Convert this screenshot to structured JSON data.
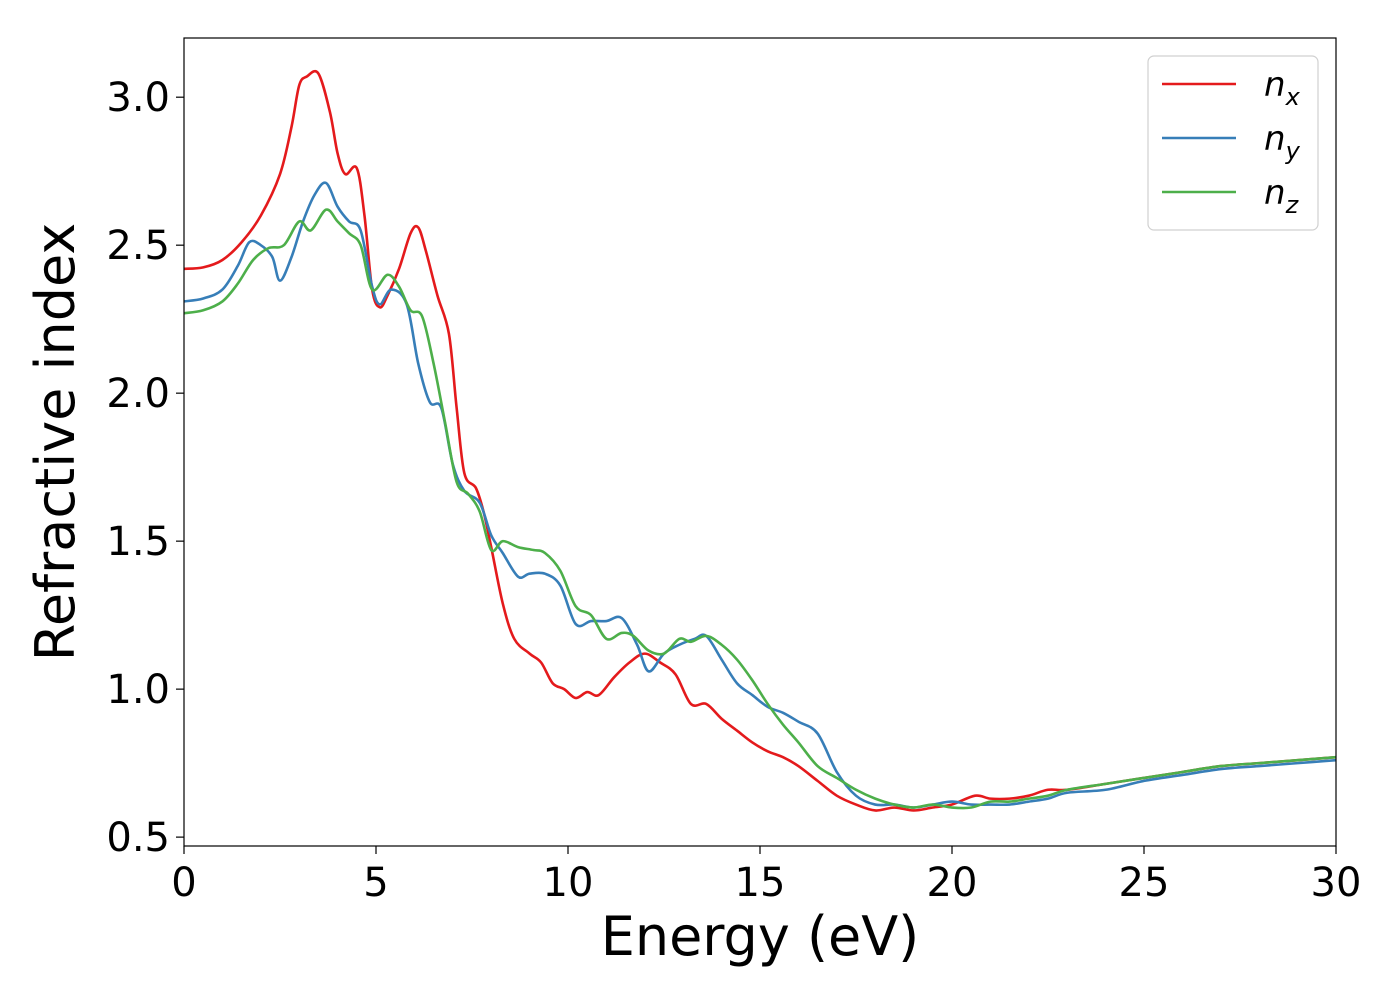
{
  "chart_data": {
    "type": "line",
    "xlabel": "Energy (eV)",
    "ylabel": "Refractive index",
    "xlim": [
      0,
      30
    ],
    "ylim": [
      0.47,
      3.2
    ],
    "xticks": [
      0,
      5,
      10,
      15,
      20,
      25,
      30
    ],
    "xtick_labels": [
      "0",
      "5",
      "10",
      "15",
      "20",
      "25",
      "30"
    ],
    "yticks": [
      0.5,
      1.0,
      1.5,
      2.0,
      2.5,
      3.0
    ],
    "ytick_labels": [
      "0.5",
      "1.0",
      "1.5",
      "2.0",
      "2.5",
      "3.0"
    ],
    "grid": false,
    "legend_position": "top-right",
    "series": [
      {
        "name": "n",
        "subscript": "x",
        "color": "#e41a1c",
        "points": [
          [
            0,
            2.42
          ],
          [
            0.5,
            2.425
          ],
          [
            1,
            2.45
          ],
          [
            1.5,
            2.51
          ],
          [
            2,
            2.6
          ],
          [
            2.5,
            2.74
          ],
          [
            2.8,
            2.9
          ],
          [
            3.0,
            3.04
          ],
          [
            3.2,
            3.07
          ],
          [
            3.5,
            3.08
          ],
          [
            3.8,
            2.95
          ],
          [
            4.0,
            2.81
          ],
          [
            4.2,
            2.74
          ],
          [
            4.5,
            2.76
          ],
          [
            4.7,
            2.6
          ],
          [
            4.9,
            2.35
          ],
          [
            5.1,
            2.29
          ],
          [
            5.3,
            2.33
          ],
          [
            5.6,
            2.42
          ],
          [
            5.9,
            2.54
          ],
          [
            6.1,
            2.56
          ],
          [
            6.3,
            2.48
          ],
          [
            6.6,
            2.33
          ],
          [
            6.9,
            2.2
          ],
          [
            7.1,
            1.95
          ],
          [
            7.3,
            1.73
          ],
          [
            7.6,
            1.68
          ],
          [
            7.8,
            1.6
          ],
          [
            8.0,
            1.48
          ],
          [
            8.3,
            1.29
          ],
          [
            8.6,
            1.17
          ],
          [
            9.0,
            1.12
          ],
          [
            9.3,
            1.09
          ],
          [
            9.6,
            1.02
          ],
          [
            9.9,
            1.0
          ],
          [
            10.2,
            0.97
          ],
          [
            10.5,
            0.99
          ],
          [
            10.8,
            0.98
          ],
          [
            11.2,
            1.04
          ],
          [
            11.6,
            1.09
          ],
          [
            12.0,
            1.12
          ],
          [
            12.4,
            1.09
          ],
          [
            12.8,
            1.05
          ],
          [
            13.2,
            0.95
          ],
          [
            13.6,
            0.95
          ],
          [
            14.0,
            0.9
          ],
          [
            14.4,
            0.86
          ],
          [
            14.8,
            0.82
          ],
          [
            15.2,
            0.79
          ],
          [
            15.6,
            0.77
          ],
          [
            16.0,
            0.74
          ],
          [
            16.5,
            0.69
          ],
          [
            17.0,
            0.64
          ],
          [
            17.5,
            0.61
          ],
          [
            18.0,
            0.59
          ],
          [
            18.5,
            0.6
          ],
          [
            19.0,
            0.59
          ],
          [
            19.5,
            0.6
          ],
          [
            20.0,
            0.61
          ],
          [
            20.6,
            0.64
          ],
          [
            21.0,
            0.63
          ],
          [
            21.5,
            0.63
          ],
          [
            22.0,
            0.64
          ],
          [
            22.5,
            0.66
          ],
          [
            23.0,
            0.66
          ],
          [
            24.0,
            0.68
          ],
          [
            25.0,
            0.7
          ],
          [
            26.0,
            0.72
          ],
          [
            27.0,
            0.74
          ],
          [
            28.0,
            0.75
          ],
          [
            29.0,
            0.76
          ],
          [
            30.0,
            0.77
          ]
        ]
      },
      {
        "name": "n",
        "subscript": "y",
        "color": "#377eb8",
        "points": [
          [
            0,
            2.31
          ],
          [
            0.5,
            2.32
          ],
          [
            1.0,
            2.35
          ],
          [
            1.4,
            2.43
          ],
          [
            1.7,
            2.51
          ],
          [
            2.0,
            2.5
          ],
          [
            2.3,
            2.46
          ],
          [
            2.5,
            2.38
          ],
          [
            2.8,
            2.46
          ],
          [
            3.1,
            2.58
          ],
          [
            3.4,
            2.67
          ],
          [
            3.7,
            2.71
          ],
          [
            4.0,
            2.63
          ],
          [
            4.3,
            2.58
          ],
          [
            4.6,
            2.55
          ],
          [
            4.9,
            2.36
          ],
          [
            5.1,
            2.3
          ],
          [
            5.4,
            2.35
          ],
          [
            5.8,
            2.3
          ],
          [
            6.1,
            2.1
          ],
          [
            6.4,
            1.97
          ],
          [
            6.7,
            1.95
          ],
          [
            7.0,
            1.76
          ],
          [
            7.3,
            1.67
          ],
          [
            7.7,
            1.63
          ],
          [
            8.0,
            1.52
          ],
          [
            8.3,
            1.46
          ],
          [
            8.7,
            1.38
          ],
          [
            9.0,
            1.39
          ],
          [
            9.4,
            1.39
          ],
          [
            9.8,
            1.35
          ],
          [
            10.2,
            1.22
          ],
          [
            10.6,
            1.23
          ],
          [
            11.0,
            1.23
          ],
          [
            11.4,
            1.24
          ],
          [
            11.8,
            1.15
          ],
          [
            12.1,
            1.06
          ],
          [
            12.5,
            1.12
          ],
          [
            12.9,
            1.15
          ],
          [
            13.3,
            1.17
          ],
          [
            13.6,
            1.18
          ],
          [
            14.0,
            1.1
          ],
          [
            14.4,
            1.02
          ],
          [
            14.8,
            0.98
          ],
          [
            15.2,
            0.94
          ],
          [
            15.6,
            0.92
          ],
          [
            16.0,
            0.89
          ],
          [
            16.5,
            0.85
          ],
          [
            17.0,
            0.72
          ],
          [
            17.5,
            0.64
          ],
          [
            18.0,
            0.61
          ],
          [
            18.5,
            0.61
          ],
          [
            19.0,
            0.6
          ],
          [
            19.5,
            0.61
          ],
          [
            20.0,
            0.62
          ],
          [
            20.5,
            0.61
          ],
          [
            21.0,
            0.61
          ],
          [
            21.5,
            0.61
          ],
          [
            22.0,
            0.62
          ],
          [
            22.5,
            0.63
          ],
          [
            23.0,
            0.65
          ],
          [
            24.0,
            0.66
          ],
          [
            25.0,
            0.69
          ],
          [
            26.0,
            0.71
          ],
          [
            27.0,
            0.73
          ],
          [
            28.0,
            0.74
          ],
          [
            29.0,
            0.75
          ],
          [
            30.0,
            0.76
          ]
        ]
      },
      {
        "name": "n",
        "subscript": "z",
        "color": "#4daf4a",
        "points": [
          [
            0,
            2.27
          ],
          [
            0.5,
            2.28
          ],
          [
            1.0,
            2.31
          ],
          [
            1.4,
            2.37
          ],
          [
            1.8,
            2.45
          ],
          [
            2.2,
            2.49
          ],
          [
            2.6,
            2.5
          ],
          [
            3.0,
            2.58
          ],
          [
            3.3,
            2.55
          ],
          [
            3.7,
            2.62
          ],
          [
            4.0,
            2.58
          ],
          [
            4.3,
            2.54
          ],
          [
            4.6,
            2.5
          ],
          [
            4.9,
            2.35
          ],
          [
            5.3,
            2.4
          ],
          [
            5.6,
            2.36
          ],
          [
            5.9,
            2.28
          ],
          [
            6.2,
            2.26
          ],
          [
            6.5,
            2.1
          ],
          [
            6.8,
            1.9
          ],
          [
            7.1,
            1.7
          ],
          [
            7.4,
            1.66
          ],
          [
            7.7,
            1.6
          ],
          [
            8.0,
            1.47
          ],
          [
            8.3,
            1.5
          ],
          [
            8.7,
            1.48
          ],
          [
            9.1,
            1.47
          ],
          [
            9.4,
            1.46
          ],
          [
            9.8,
            1.4
          ],
          [
            10.2,
            1.28
          ],
          [
            10.6,
            1.25
          ],
          [
            11.0,
            1.17
          ],
          [
            11.4,
            1.19
          ],
          [
            11.7,
            1.18
          ],
          [
            12.1,
            1.13
          ],
          [
            12.5,
            1.12
          ],
          [
            12.9,
            1.17
          ],
          [
            13.2,
            1.16
          ],
          [
            13.6,
            1.18
          ],
          [
            14.0,
            1.15
          ],
          [
            14.4,
            1.1
          ],
          [
            14.8,
            1.03
          ],
          [
            15.2,
            0.95
          ],
          [
            15.6,
            0.88
          ],
          [
            16.0,
            0.82
          ],
          [
            16.5,
            0.74
          ],
          [
            17.0,
            0.7
          ],
          [
            17.5,
            0.66
          ],
          [
            18.0,
            0.63
          ],
          [
            18.5,
            0.61
          ],
          [
            19.0,
            0.6
          ],
          [
            19.5,
            0.61
          ],
          [
            20.0,
            0.6
          ],
          [
            20.5,
            0.6
          ],
          [
            21.0,
            0.62
          ],
          [
            21.5,
            0.62
          ],
          [
            22.0,
            0.63
          ],
          [
            22.5,
            0.64
          ],
          [
            23.0,
            0.66
          ],
          [
            24.0,
            0.68
          ],
          [
            25.0,
            0.7
          ],
          [
            26.0,
            0.72
          ],
          [
            27.0,
            0.74
          ],
          [
            28.0,
            0.75
          ],
          [
            29.0,
            0.76
          ],
          [
            30.0,
            0.77
          ]
        ]
      }
    ]
  }
}
